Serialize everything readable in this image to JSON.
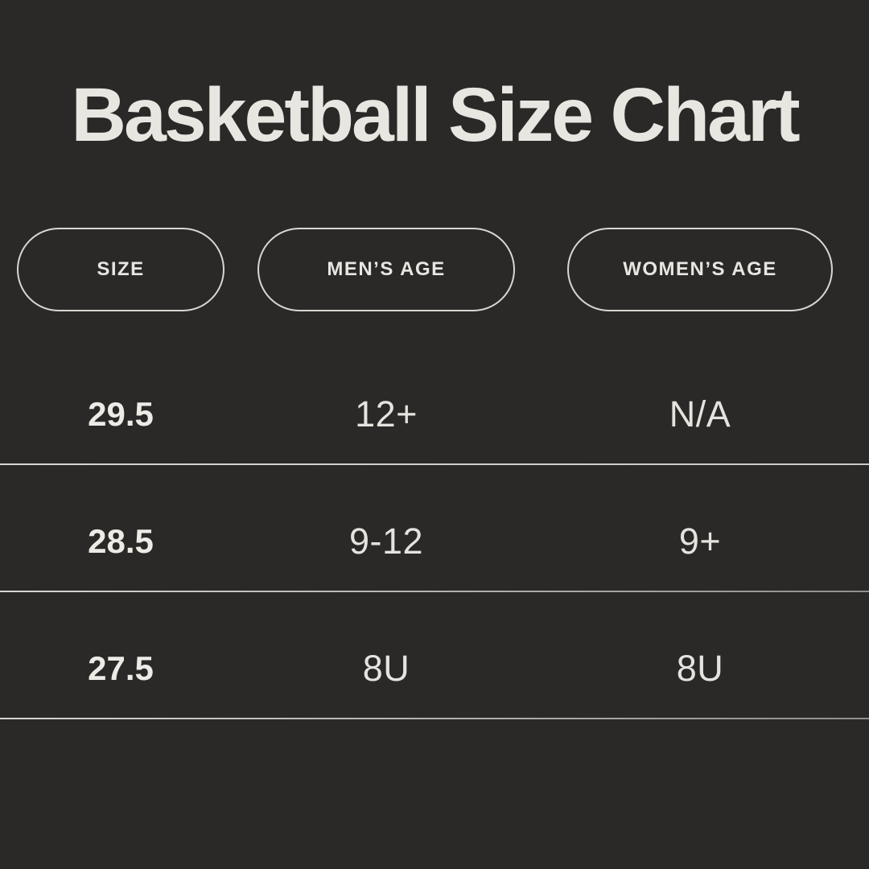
{
  "colors": {
    "background": "#2a2928",
    "heading": "#e8e6e1",
    "cell-text": "#e5e3de",
    "cell-strong": "#edebe6",
    "pill-border": "#d9d7d1",
    "divider-light": "#d8d6d1",
    "divider-fade": "#8f8f8d"
  },
  "chart_data": {
    "type": "table",
    "title": "Basketball Size Chart",
    "columns": [
      "SIZE",
      "MEN’S AGE",
      "WOMEN’S AGE"
    ],
    "rows": [
      [
        "29.5",
        "12+",
        "N/A"
      ],
      [
        "28.5",
        "9-12",
        "9+"
      ],
      [
        "27.5",
        "8U",
        "8U"
      ]
    ],
    "layout": {
      "background": "dark",
      "header_style": "outlined-pill",
      "row_dividers": true
    }
  }
}
